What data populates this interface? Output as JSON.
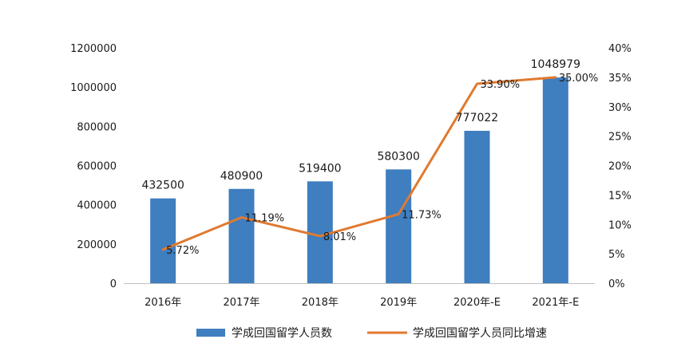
{
  "chart_data": {
    "type": "bar",
    "categories": [
      "2016年",
      "2017年",
      "2018年",
      "2019年",
      "2020年-E",
      "2021年-E"
    ],
    "series": [
      {
        "name": "学成回国留学人员数",
        "type": "bar",
        "axis": "left",
        "color": "#3f7ebf",
        "values": [
          432500,
          480900,
          519400,
          580300,
          777022,
          1048979
        ],
        "labels": [
          "432500",
          "480900",
          "519400",
          "580300",
          "777022",
          "1048979"
        ]
      },
      {
        "name": "学成回国留学人员同比增速",
        "type": "line",
        "axis": "right",
        "color": "#e07a30",
        "values": [
          5.72,
          11.19,
          8.01,
          11.73,
          33.9,
          35.0
        ],
        "labels": [
          "5.72%",
          "11.19%",
          "8.01%",
          "11.73%",
          "33.90%",
          "35.00%"
        ]
      }
    ],
    "y_left": {
      "min": 0,
      "max": 1200000,
      "ticks": [
        0,
        200000,
        400000,
        600000,
        800000,
        1000000,
        1200000
      ],
      "tick_labels": [
        "0",
        "200000",
        "400000",
        "600000",
        "800000",
        "1000000",
        "1200000"
      ]
    },
    "y_right": {
      "min": 0,
      "max": 40,
      "ticks": [
        0,
        5,
        10,
        15,
        20,
        25,
        30,
        35,
        40
      ],
      "tick_labels": [
        "0%",
        "5%",
        "10%",
        "15%",
        "20%",
        "25%",
        "30%",
        "35%",
        "40%"
      ]
    },
    "grid": false,
    "legend": "bottom"
  }
}
